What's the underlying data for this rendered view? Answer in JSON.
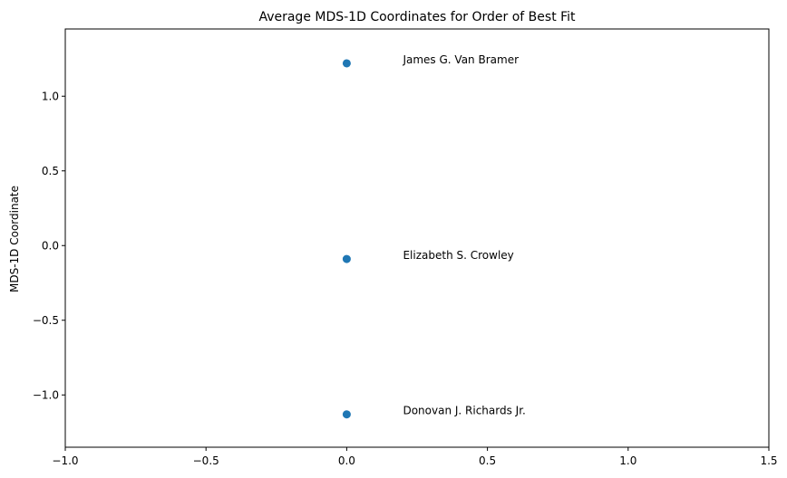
{
  "chart_data": {
    "type": "scatter",
    "title": "Average MDS-1D Coordinates for Order of Best Fit",
    "xlabel": "",
    "ylabel": "MDS-1D Coordinate",
    "xlim": [
      -1.0,
      1.5
    ],
    "ylim": [
      -1.35,
      1.45
    ],
    "xticks": [
      -1.0,
      -0.5,
      0.0,
      0.5,
      1.0,
      1.5
    ],
    "xtick_labels": [
      "−1.0",
      "−0.5",
      "0.0",
      "0.5",
      "1.0",
      "1.5"
    ],
    "yticks": [
      -1.0,
      -0.5,
      0.0,
      0.5,
      1.0
    ],
    "ytick_labels": [
      "−1.0",
      "−0.5",
      "0.0",
      "0.5",
      "1.0"
    ],
    "grid": false,
    "color": "#1f77b4",
    "points": [
      {
        "x": 0.0,
        "y": 1.22,
        "label": "James G. Van Bramer"
      },
      {
        "x": 0.0,
        "y": -0.09,
        "label": "Elizabeth S. Crowley"
      },
      {
        "x": 0.0,
        "y": -1.13,
        "label": "Donovan J. Richards Jr."
      }
    ]
  }
}
